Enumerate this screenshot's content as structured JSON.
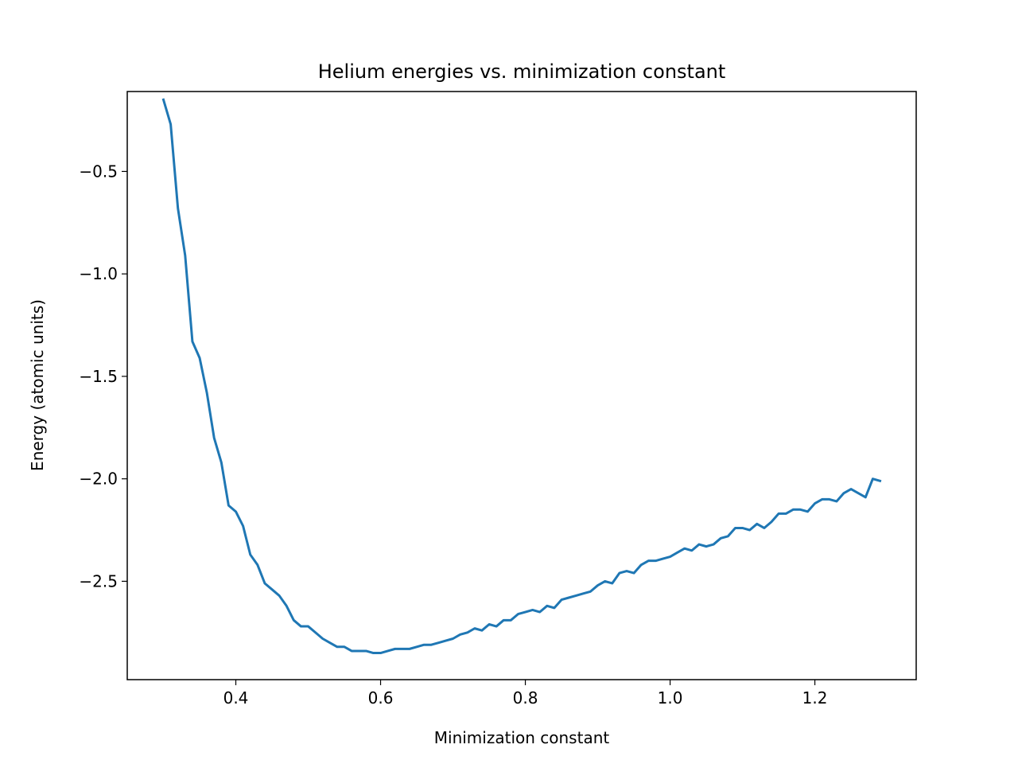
{
  "chart_data": {
    "type": "line",
    "title": "Helium energies vs. minimization constant",
    "xlabel": "Minimization constant",
    "ylabel": "Energy (atomic units)",
    "xlim": [
      0.25,
      1.34
    ],
    "ylim": [
      -2.98,
      -0.11
    ],
    "xticks": [
      0.4,
      0.6,
      0.8,
      1.0,
      1.2
    ],
    "xtick_labels": [
      "0.4",
      "0.6",
      "0.8",
      "1.0",
      "1.2"
    ],
    "yticks": [
      -0.5,
      -1.0,
      -1.5,
      -2.0,
      -2.5
    ],
    "ytick_labels": [
      "−0.5",
      "−1.0",
      "−1.5",
      "−2.0",
      "−2.5"
    ],
    "grid": false,
    "series": [
      {
        "color": "#1f77b4",
        "x": [
          0.3,
          0.31,
          0.32,
          0.33,
          0.34,
          0.35,
          0.36,
          0.37,
          0.38,
          0.39,
          0.4,
          0.41,
          0.42,
          0.43,
          0.44,
          0.45,
          0.46,
          0.47,
          0.48,
          0.49,
          0.5,
          0.51,
          0.52,
          0.53,
          0.54,
          0.55,
          0.56,
          0.57,
          0.58,
          0.59,
          0.6,
          0.61,
          0.62,
          0.63,
          0.64,
          0.65,
          0.66,
          0.67,
          0.68,
          0.69,
          0.7,
          0.71,
          0.72,
          0.73,
          0.74,
          0.75,
          0.76,
          0.77,
          0.78,
          0.79,
          0.8,
          0.81,
          0.82,
          0.83,
          0.84,
          0.85,
          0.86,
          0.87,
          0.88,
          0.89,
          0.9,
          0.91,
          0.92,
          0.93,
          0.94,
          0.95,
          0.96,
          0.97,
          0.98,
          0.99,
          1.0,
          1.01,
          1.02,
          1.03,
          1.04,
          1.05,
          1.06,
          1.07,
          1.08,
          1.09,
          1.1,
          1.11,
          1.12,
          1.13,
          1.14,
          1.15,
          1.16,
          1.17,
          1.18,
          1.19,
          1.2,
          1.21,
          1.22,
          1.23,
          1.24,
          1.25,
          1.26,
          1.27,
          1.28,
          1.29
        ],
        "y": [
          -0.15,
          -0.27,
          -0.68,
          -0.91,
          -1.33,
          -1.41,
          -1.58,
          -1.8,
          -1.92,
          -2.13,
          -2.16,
          -2.23,
          -2.37,
          -2.42,
          -2.51,
          -2.54,
          -2.57,
          -2.62,
          -2.69,
          -2.72,
          -2.72,
          -2.75,
          -2.78,
          -2.8,
          -2.82,
          -2.82,
          -2.84,
          -2.84,
          -2.84,
          -2.85,
          -2.85,
          -2.84,
          -2.83,
          -2.83,
          -2.83,
          -2.82,
          -2.81,
          -2.81,
          -2.8,
          -2.79,
          -2.78,
          -2.76,
          -2.75,
          -2.73,
          -2.74,
          -2.71,
          -2.72,
          -2.69,
          -2.69,
          -2.66,
          -2.65,
          -2.64,
          -2.65,
          -2.62,
          -2.63,
          -2.59,
          -2.58,
          -2.57,
          -2.56,
          -2.55,
          -2.52,
          -2.5,
          -2.51,
          -2.46,
          -2.45,
          -2.46,
          -2.42,
          -2.4,
          -2.4,
          -2.39,
          -2.38,
          -2.36,
          -2.34,
          -2.35,
          -2.32,
          -2.33,
          -2.32,
          -2.29,
          -2.28,
          -2.24,
          -2.24,
          -2.25,
          -2.22,
          -2.24,
          -2.21,
          -2.17,
          -2.17,
          -2.15,
          -2.15,
          -2.16,
          -2.12,
          -2.1,
          -2.1,
          -2.11,
          -2.07,
          -2.05,
          -2.07,
          -2.09,
          -2.0,
          -2.01
        ]
      }
    ]
  }
}
